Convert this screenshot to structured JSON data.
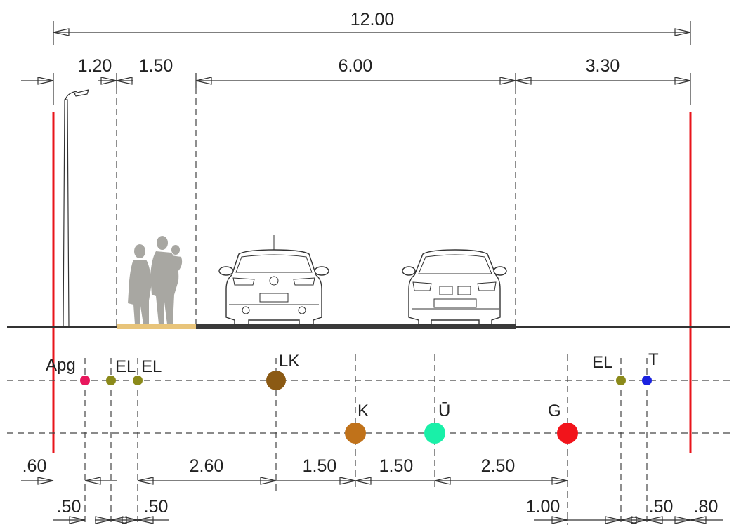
{
  "dimensions": {
    "total": "12.00",
    "top": [
      "1.20",
      "1.50",
      "6.00",
      "3.30"
    ],
    "bottom_row1": [
      ".60",
      "2.60",
      "1.50",
      "1.50",
      "2.50"
    ],
    "bottom_row2": [
      ".50",
      ".50",
      "1.00",
      ".50",
      ".80"
    ]
  },
  "utilities": [
    {
      "label": "Apg",
      "color": "#e8175d",
      "row": "upper"
    },
    {
      "label": "EL",
      "color": "#8b8a1a",
      "row": "upper"
    },
    {
      "label": "EL",
      "color": "#8b8a1a",
      "row": "upper"
    },
    {
      "label": "LK",
      "color": "#8b5a14",
      "row": "upper"
    },
    {
      "label": "K",
      "color": "#c0721a",
      "row": "lower"
    },
    {
      "label": "Ū",
      "color": "#19f0a8",
      "row": "lower"
    },
    {
      "label": "G",
      "color": "#f2141b",
      "row": "lower"
    },
    {
      "label": "EL",
      "color": "#8b8a1a",
      "row": "upper"
    },
    {
      "label": "T",
      "color": "#1a22e0",
      "row": "upper"
    }
  ],
  "colors": {
    "boundary": "#e8141b",
    "sidewalk": "#e8c47a",
    "roadway": "#3a3a3a",
    "pedestrians": "#a8a7a2"
  }
}
